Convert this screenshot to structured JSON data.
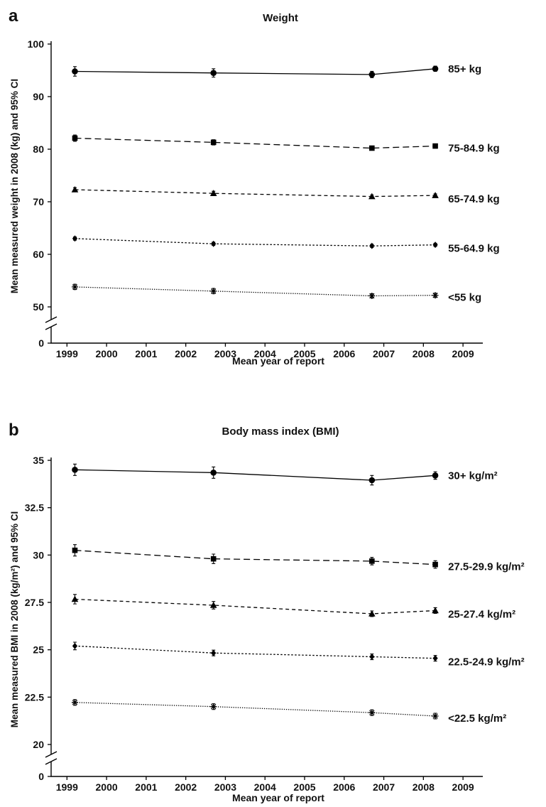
{
  "chart_data": [
    {
      "type": "line",
      "panel_letter": "a",
      "title": "Weight",
      "xlabel": "Mean year of report",
      "ylabel": "Mean measured weight in 2008 (kg) and 95% CI",
      "x_ticks": [
        1999,
        2000,
        2001,
        2002,
        2003,
        2004,
        2005,
        2006,
        2007,
        2008,
        2009
      ],
      "xlim": [
        1998.6,
        2009.5
      ],
      "y_ticks": [
        "0",
        "50",
        "60",
        "70",
        "80",
        "90",
        "100"
      ],
      "y_tick_values": [
        0,
        50,
        60,
        70,
        80,
        90,
        100
      ],
      "ylim": [
        45,
        100
      ],
      "axis_break": true,
      "series": [
        {
          "name": "85+ kg",
          "marker": "circle",
          "dash": "solid",
          "x": [
            1999.2,
            2002.7,
            2006.7,
            2008.3
          ],
          "y": [
            94.8,
            94.5,
            94.2,
            95.3
          ],
          "ci": [
            0.9,
            0.8,
            0.6,
            0.5
          ]
        },
        {
          "name": "75-84.9 kg",
          "marker": "square",
          "dash": "dashed",
          "x": [
            1999.2,
            2002.7,
            2006.7,
            2008.3
          ],
          "y": [
            82.1,
            81.3,
            80.2,
            80.6
          ],
          "ci": [
            0.6,
            0.5,
            0.4,
            0.4
          ]
        },
        {
          "name": "65-74.9 kg",
          "marker": "triangle",
          "dash": "shortdash",
          "x": [
            1999.2,
            2002.7,
            2006.7,
            2008.3
          ],
          "y": [
            72.3,
            71.6,
            71.0,
            71.2
          ],
          "ci": [
            0.4,
            0.4,
            0.3,
            0.3
          ]
        },
        {
          "name": "55-64.9 kg",
          "marker": "diamond",
          "dash": "dotted",
          "x": [
            1999.2,
            2002.7,
            2006.7,
            2008.3
          ],
          "y": [
            63.0,
            62.0,
            61.6,
            61.8
          ],
          "ci": [
            0.3,
            0.3,
            0.3,
            0.3
          ]
        },
        {
          "name": "<55 kg",
          "marker": "asterisk",
          "dash": "fine",
          "x": [
            1999.2,
            2002.7,
            2006.7,
            2008.3
          ],
          "y": [
            53.8,
            53.0,
            52.1,
            52.2
          ],
          "ci": [
            0.5,
            0.5,
            0.4,
            0.4
          ]
        }
      ]
    },
    {
      "type": "line",
      "panel_letter": "b",
      "title": "Body mass index (BMI)",
      "xlabel": "Mean year of report",
      "ylabel": "Mean measured BMI in 2008 (kg/m²) and 95% CI",
      "x_ticks": [
        1999,
        2000,
        2001,
        2002,
        2003,
        2004,
        2005,
        2006,
        2007,
        2008,
        2009
      ],
      "xlim": [
        1998.6,
        2009.5
      ],
      "y_ticks": [
        "0",
        "20",
        "22.5",
        "25",
        "27.5",
        "30",
        "32.5",
        "35"
      ],
      "y_tick_values": [
        0,
        20,
        22.5,
        25,
        27.5,
        30,
        32.5,
        35
      ],
      "ylim": [
        18.9,
        35
      ],
      "axis_break": true,
      "series": [
        {
          "name": "30+ kg/m²",
          "marker": "circle",
          "dash": "solid",
          "x": [
            1999.2,
            2002.7,
            2006.7,
            2008.3
          ],
          "y": [
            34.5,
            34.35,
            33.95,
            34.2
          ],
          "ci": [
            0.3,
            0.3,
            0.25,
            0.2
          ]
        },
        {
          "name": "27.5-29.9 kg/m²",
          "marker": "square",
          "dash": "dashed",
          "x": [
            1999.2,
            2002.7,
            2006.7,
            2008.3
          ],
          "y": [
            30.25,
            29.8,
            29.68,
            29.5
          ],
          "ci": [
            0.3,
            0.25,
            0.2,
            0.2
          ]
        },
        {
          "name": "25-27.4 kg/m²",
          "marker": "triangle",
          "dash": "shortdash",
          "x": [
            1999.2,
            2002.7,
            2006.7,
            2008.3
          ],
          "y": [
            27.67,
            27.35,
            26.9,
            27.07
          ],
          "ci": [
            0.25,
            0.2,
            0.15,
            0.15
          ]
        },
        {
          "name": "22.5-24.9 kg/m²",
          "marker": "diamond",
          "dash": "dotted",
          "x": [
            1999.2,
            2002.7,
            2006.7,
            2008.3
          ],
          "y": [
            25.2,
            24.83,
            24.63,
            24.55
          ],
          "ci": [
            0.2,
            0.15,
            0.15,
            0.15
          ]
        },
        {
          "name": "<22.5 kg/m²",
          "marker": "asterisk",
          "dash": "fine",
          "x": [
            1999.2,
            2002.7,
            2006.7,
            2008.3
          ],
          "y": [
            22.22,
            22.0,
            21.68,
            21.5
          ],
          "ci": [
            0.15,
            0.15,
            0.15,
            0.15
          ]
        }
      ]
    }
  ]
}
